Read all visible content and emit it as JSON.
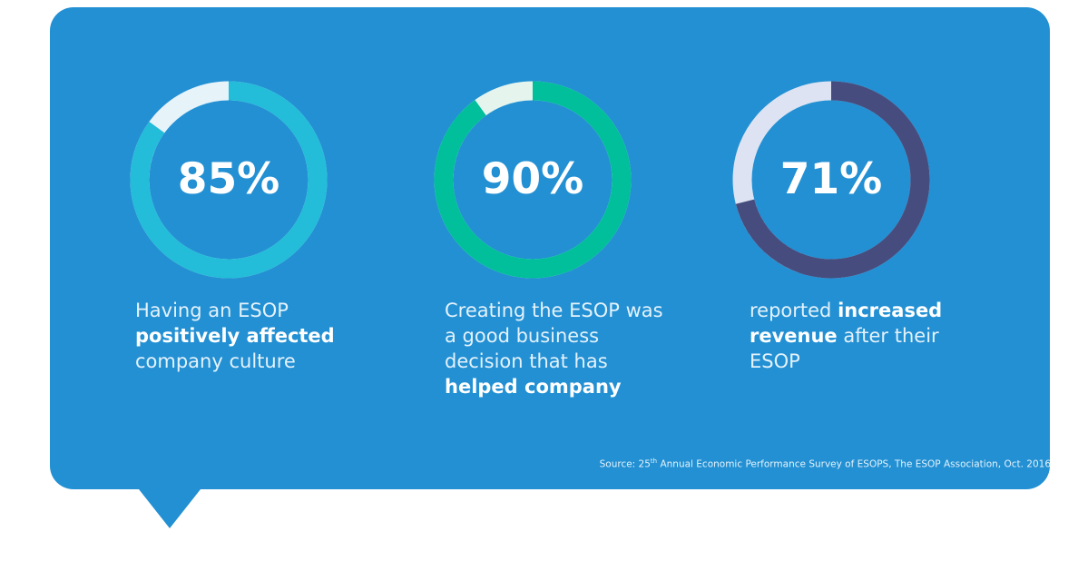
{
  "colors": {
    "background": "#2290d3",
    "page": "#ffffff",
    "text": "#ffffff"
  },
  "chart_data": [
    {
      "type": "pie",
      "variant": "donut",
      "value": 85,
      "label": "85%",
      "color": "#23bcd9",
      "remainder_color": "#e6f3f9",
      "caption": {
        "pre": "Having an ESOP",
        "bold": "positively affected",
        "post": "company culture"
      }
    },
    {
      "type": "pie",
      "variant": "donut",
      "value": 90,
      "label": "90%",
      "color": "#00bf9a",
      "remainder_color": "#e5f5ee",
      "caption": {
        "pre": "Creating the ESOP was a good business decision that has",
        "bold": "helped company",
        "post": ""
      }
    },
    {
      "type": "pie",
      "variant": "donut",
      "value": 71,
      "label": "71%",
      "color": "#464c7e",
      "remainder_color": "#dde3f2",
      "caption": {
        "pre": "reported",
        "bold": "increased revenue",
        "post": "after their ESOP"
      }
    }
  ],
  "source": {
    "prefix": "Source: 25",
    "superscript": "th",
    "text": " Annual Economic Performance Survey of ESOPS, The ESOP Association, Oct. 2016"
  }
}
